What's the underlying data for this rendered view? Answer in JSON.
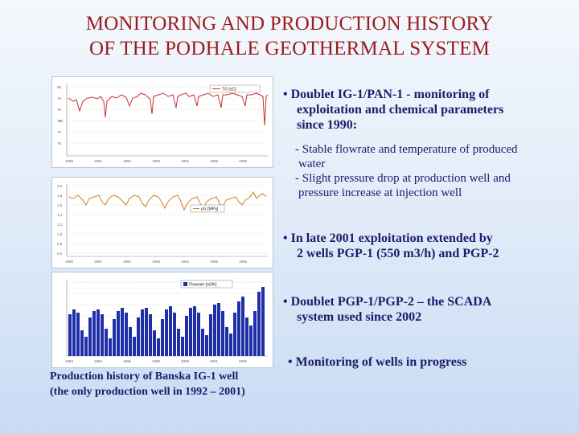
{
  "title": {
    "line1": "MONITORING AND PRODUCTION HISTORY",
    "line2": "OF THE PODHALE GEOTHERMAL SYSTEM"
  },
  "charts": {
    "temperature": {
      "legend": "TG [oC]",
      "ylabel": "oC",
      "color": "#c83232"
    },
    "pressure": {
      "legend": "pG [MPa]",
      "color": "#d08020"
    },
    "flowrate": {
      "legend": "Flowrate [m3/h]",
      "color": "#1f2fa8"
    }
  },
  "caption": {
    "line1": "Production history of Banska IG-1 well",
    "line2": "(the only production well in 1992 – 2001)"
  },
  "bullets": {
    "b1": {
      "line1": "• Doublet IG-1/PAN-1 - monitoring of",
      "line2": "exploitation and chemical parameters",
      "line3": "since 1990:"
    },
    "sub": {
      "line1": "- Stable flowrate and temperature of produced",
      "line2": "water",
      "line3": "- Slight pressure drop at production well and",
      "line4": "pressure increase at injection well"
    },
    "b2": {
      "line1": "• In late 2001 exploitation extended by",
      "line2": "2 wells PGP-1 (550 m3/h) and PGP-2"
    },
    "b3": {
      "line1": "•  Doublet PGP-1/PGP-2 – the SCADA",
      "line2": "system used since 2002"
    },
    "b4": {
      "line1": "•  Monitoring of wells in progress"
    }
  }
}
